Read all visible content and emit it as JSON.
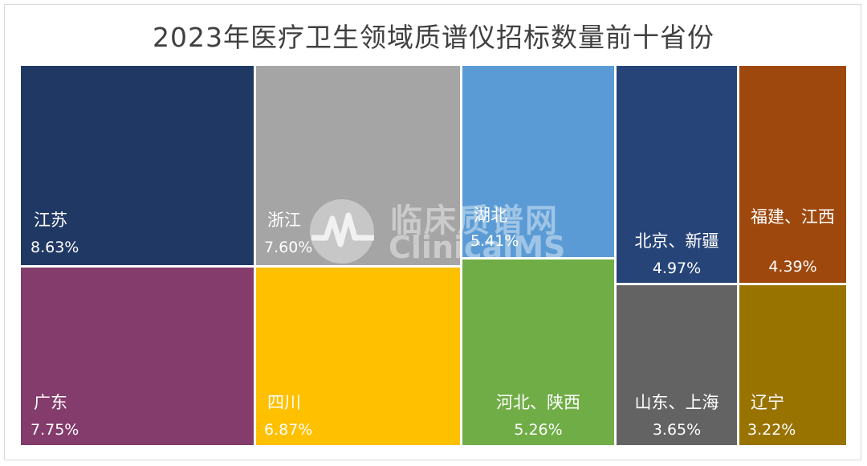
{
  "chart_data": {
    "type": "treemap",
    "title": "2023年医疗卫生领域质谱仪招标数量前十省份",
    "unit": "%",
    "items": [
      {
        "label": "江苏",
        "value": 8.63,
        "display": "8.63%",
        "color": "#203864"
      },
      {
        "label": "广东",
        "value": 7.75,
        "display": "7.75%",
        "color": "#843C6C"
      },
      {
        "label": "浙江",
        "value": 7.6,
        "display": "7.60%",
        "color": "#A5A5A5"
      },
      {
        "label": "四川",
        "value": 6.87,
        "display": "6.87%",
        "color": "#FFC000"
      },
      {
        "label": "湖北",
        "value": 5.41,
        "display": "5.41%",
        "color": "#5B9BD5"
      },
      {
        "label": "河北、陕西",
        "value": 5.26,
        "display": "5.26%",
        "color": "#70AD47"
      },
      {
        "label": "北京、新疆",
        "value": 4.97,
        "display": "4.97%",
        "color": "#264478"
      },
      {
        "label": "山东、上海",
        "value": 3.65,
        "display": "3.65%",
        "color": "#636363"
      },
      {
        "label": "福建、江西",
        "value": 4.39,
        "display": "4.39%",
        "color": "#9E480E"
      },
      {
        "label": "辽宁",
        "value": 3.22,
        "display": "3.22%",
        "color": "#997300"
      }
    ]
  },
  "watermark": {
    "text_cn": "临床质谱网",
    "text_en": "ClinicalMS",
    "icon": "heartbeat-m-logo-icon"
  }
}
